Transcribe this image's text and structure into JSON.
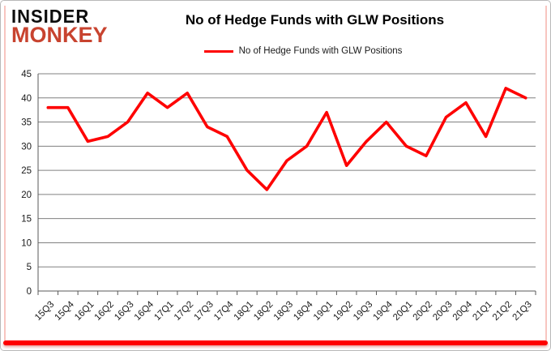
{
  "logo": {
    "line1": "INSIDER",
    "line2": "MONKEY"
  },
  "title": "No of Hedge Funds with GLW Positions",
  "legend": {
    "label": "No of Hedge Funds with GLW Positions",
    "color": "#fe0000"
  },
  "colors": {
    "series_red": "#fe0000",
    "gridline": "#808080",
    "axis": "#595959",
    "text": "#1a1a1a",
    "logo_red": "#c8432f",
    "bottom_bar": "#fe0000"
  },
  "chart_data": {
    "type": "line",
    "title": "No of Hedge Funds with GLW Positions",
    "series_name": "No of Hedge Funds with GLW Positions",
    "categories": [
      "15Q3",
      "15Q4",
      "16Q1",
      "16Q2",
      "16Q3",
      "16Q4",
      "17Q1",
      "17Q2",
      "17Q3",
      "17Q4",
      "18Q1",
      "18Q2",
      "18Q3",
      "18Q4",
      "19Q1",
      "19Q2",
      "19Q3",
      "19Q4",
      "20Q1",
      "20Q2",
      "20Q3",
      "20Q4",
      "21Q1",
      "21Q2",
      "21Q3"
    ],
    "values": [
      38,
      38,
      31,
      32,
      35,
      41,
      38,
      41,
      34,
      32,
      25,
      21,
      27,
      30,
      37,
      26,
      31,
      35,
      30,
      28,
      36,
      39,
      32,
      42,
      40
    ],
    "xlabel": "",
    "ylabel": "",
    "ylim": [
      0,
      45
    ],
    "yticks": [
      0,
      5,
      10,
      15,
      20,
      25,
      30,
      35,
      40,
      45
    ],
    "grid": true,
    "legend_position": "top",
    "line_color": "#fe0000"
  }
}
